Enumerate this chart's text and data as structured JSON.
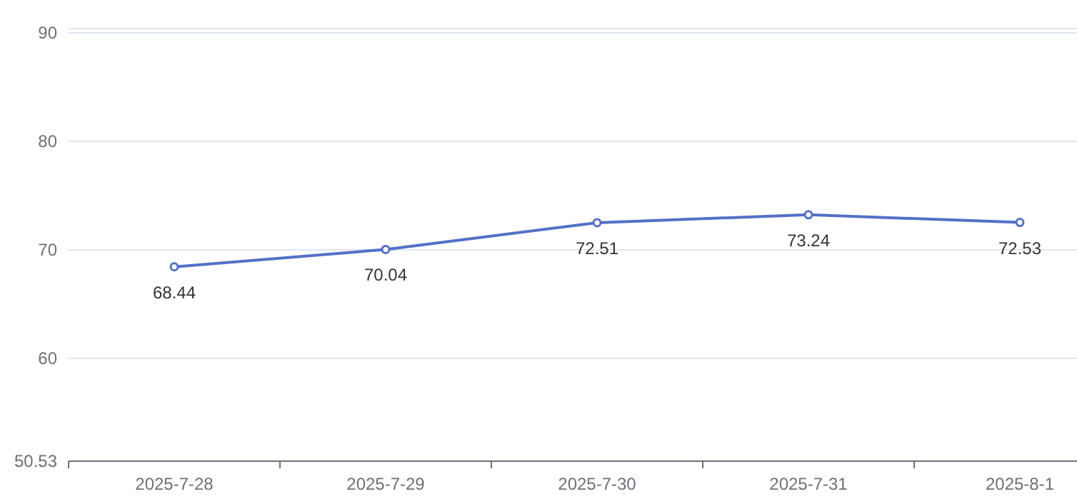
{
  "chart_data": {
    "type": "line",
    "categories": [
      "2025-7-28",
      "2025-7-29",
      "2025-7-30",
      "2025-7-31",
      "2025-8-1"
    ],
    "series": [
      {
        "color": "#5470c6",
        "values": [
          68.44,
          70.04,
          72.51,
          73.24,
          72.53
        ]
      }
    ],
    "ylim": [
      50.53,
      90.4
    ],
    "yticks": [
      50.53,
      60,
      70,
      80,
      90,
      {
        "value": 90.4,
        "label": null
      }
    ],
    "grid": "y",
    "data_labels": true,
    "marker": "circle",
    "line_style": "solid"
  }
}
